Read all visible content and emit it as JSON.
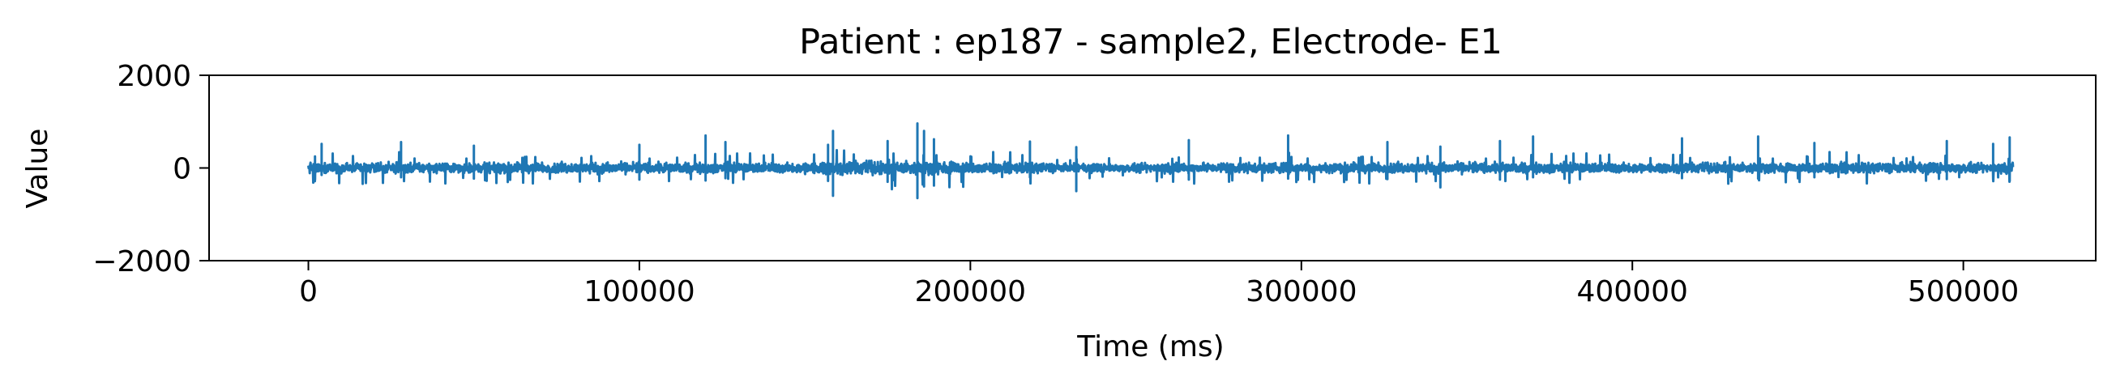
{
  "chart_data": {
    "type": "line",
    "title": "Patient : ep187 - sample2, Electrode- E1",
    "xlabel": "Time (ms)",
    "ylabel": "Value",
    "xlim": [
      -30000,
      540000
    ],
    "ylim": [
      -2000,
      2000
    ],
    "x_ticks": [
      0,
      100000,
      200000,
      300000,
      400000,
      500000
    ],
    "y_ticks": [
      -2000,
      0,
      2000
    ],
    "x_tick_labels": [
      "0",
      "100000",
      "200000",
      "300000",
      "400000",
      "500000"
    ],
    "y_tick_labels": [
      "−2000",
      "0",
      "2000"
    ],
    "grid": false,
    "series": [
      {
        "color": "#1f77b4",
        "x_start": 0,
        "x_end": 515000,
        "approx_amplitude": 150,
        "events": [
          {
            "x": 2000,
            "min": -250,
            "max": 250
          },
          {
            "x": 4000,
            "min": -150,
            "max": 520
          },
          {
            "x": 28000,
            "min": -200,
            "max": 560
          },
          {
            "x": 50000,
            "min": -230,
            "max": 480
          },
          {
            "x": 100000,
            "min": -250,
            "max": 500
          },
          {
            "x": 120000,
            "min": -270,
            "max": 700
          },
          {
            "x": 126000,
            "min": -220,
            "max": 560
          },
          {
            "x": 157000,
            "min": -280,
            "max": 500
          },
          {
            "x": 158500,
            "min": -600,
            "max": 800
          },
          {
            "x": 175000,
            "min": -300,
            "max": 580
          },
          {
            "x": 184000,
            "min": -650,
            "max": 960
          },
          {
            "x": 186000,
            "min": -400,
            "max": 800
          },
          {
            "x": 189000,
            "min": -380,
            "max": 620
          },
          {
            "x": 218000,
            "min": -200,
            "max": 570
          },
          {
            "x": 232000,
            "min": -500,
            "max": 450
          },
          {
            "x": 266000,
            "min": -250,
            "max": 600
          },
          {
            "x": 296000,
            "min": -230,
            "max": 700
          },
          {
            "x": 326000,
            "min": -240,
            "max": 560
          },
          {
            "x": 342000,
            "min": -420,
            "max": 460
          },
          {
            "x": 360000,
            "min": -250,
            "max": 580
          },
          {
            "x": 370000,
            "min": -200,
            "max": 680
          },
          {
            "x": 415000,
            "min": -220,
            "max": 640
          },
          {
            "x": 438000,
            "min": -230,
            "max": 680
          },
          {
            "x": 455000,
            "min": -200,
            "max": 540
          },
          {
            "x": 495000,
            "min": -240,
            "max": 580
          },
          {
            "x": 509000,
            "min": -250,
            "max": 520
          },
          {
            "x": 514000,
            "min": -280,
            "max": 660
          }
        ]
      }
    ]
  }
}
